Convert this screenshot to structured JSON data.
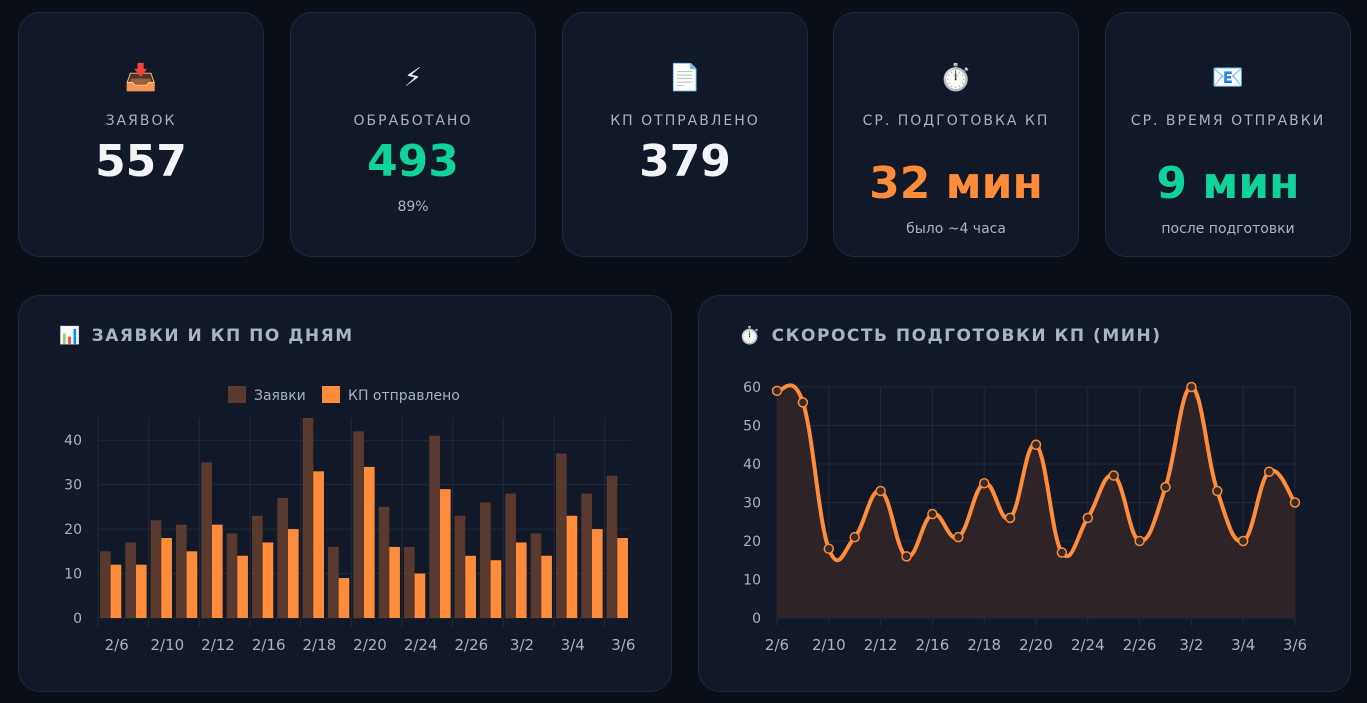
{
  "stats": [
    {
      "icon": "inbox-tray-icon",
      "glyph": "📥",
      "label": "ЗАЯВОК",
      "value": "557",
      "color": "#f3f4f6",
      "sub": ""
    },
    {
      "icon": "lightning-icon",
      "glyph": "⚡",
      "label": "ОБРАБОТАНО",
      "value": "493",
      "color": "#10d39a",
      "sub": "89%"
    },
    {
      "icon": "document-icon",
      "glyph": "📄",
      "label": "КП ОТПРАВЛЕНО",
      "value": "379",
      "color": "#f3f4f6",
      "sub": ""
    },
    {
      "icon": "stopwatch-icon",
      "glyph": "⏱️",
      "label": "СР. ПОДГОТОВКА КП",
      "value": "32 мин",
      "color": "#ff8c3a",
      "sub": "было ~4 часа"
    },
    {
      "icon": "email-icon",
      "glyph": "📧",
      "label": "СР. ВРЕМЯ ОТПРАВКИ",
      "value": "9 мин",
      "color": "#10d39a",
      "sub": "после подготовки"
    }
  ],
  "charts_titles": {
    "bar": "ЗАЯВКИ И КП ПО ДНЯМ",
    "bar_icon": "bar-chart-icon",
    "line": "СКОРОСТЬ ПОДГОТОВКИ КП (МИН)",
    "line_icon": "stopwatch-icon"
  },
  "chart_data": [
    {
      "type": "bar",
      "title": "ЗАЯВКИ И КП ПО ДНЯМ",
      "legend_position": "top",
      "grid": true,
      "ylim": [
        0,
        45
      ],
      "yticks": [
        0,
        10,
        20,
        30,
        40
      ],
      "categories": [
        "2/6",
        "",
        "2/10",
        "",
        "2/12",
        "",
        "2/16",
        "",
        "2/18",
        "",
        "2/20",
        "",
        "2/24",
        "",
        "2/26",
        "",
        "3/2",
        "",
        "3/4",
        "",
        "3/6"
      ],
      "series": [
        {
          "name": "Заявки",
          "color": "#5a3a2e",
          "values": [
            15,
            17,
            22,
            21,
            35,
            19,
            23,
            27,
            45,
            16,
            42,
            25,
            16,
            41,
            23,
            26,
            28,
            19,
            37,
            28,
            32
          ]
        },
        {
          "name": "КП отправлено",
          "color": "#ff8c3a",
          "values": [
            12,
            12,
            18,
            15,
            21,
            14,
            17,
            20,
            33,
            9,
            34,
            16,
            10,
            29,
            14,
            13,
            17,
            14,
            23,
            20,
            18
          ]
        }
      ]
    },
    {
      "type": "area",
      "title": "СКОРОСТЬ ПОДГОТОВКИ КП (МИН)",
      "grid": true,
      "ylim": [
        0,
        60
      ],
      "yticks": [
        0,
        10,
        20,
        30,
        40,
        50,
        60
      ],
      "categories": [
        "2/6",
        "",
        "2/10",
        "",
        "2/12",
        "",
        "2/16",
        "",
        "2/18",
        "",
        "2/20",
        "",
        "2/24",
        "",
        "2/26",
        "",
        "3/2",
        "",
        "3/4",
        "",
        "3/6"
      ],
      "series": [
        {
          "color": "#ff8c3a",
          "values": [
            59,
            56,
            18,
            21,
            33,
            16,
            27,
            21,
            35,
            26,
            45,
            17,
            26,
            37,
            20,
            34,
            60,
            33,
            20,
            38,
            30
          ]
        }
      ]
    }
  ]
}
